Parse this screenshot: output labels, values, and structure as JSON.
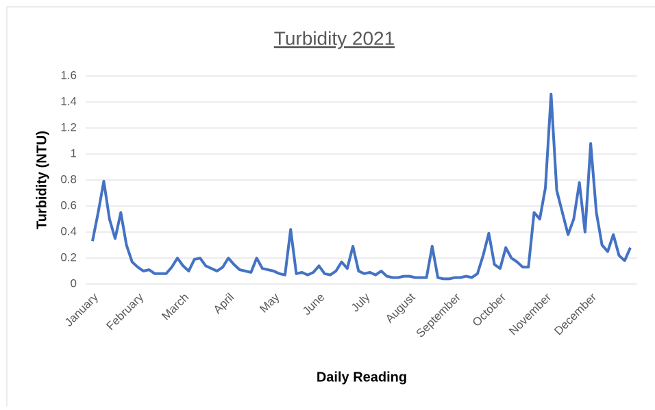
{
  "chart_data": {
    "type": "line",
    "title": "Turbidity 2021",
    "x_label": "Daily Reading",
    "y_label": "Turbidity (NTU)",
    "categories": [
      "January",
      null,
      null,
      null,
      null,
      null,
      null,
      null,
      "February",
      null,
      null,
      null,
      null,
      null,
      null,
      null,
      "March",
      null,
      null,
      null,
      null,
      null,
      null,
      null,
      "April",
      null,
      null,
      null,
      null,
      null,
      null,
      null,
      "May",
      null,
      null,
      null,
      null,
      null,
      null,
      null,
      "June",
      null,
      null,
      null,
      null,
      null,
      null,
      null,
      "July",
      null,
      null,
      null,
      null,
      null,
      null,
      null,
      "August",
      null,
      null,
      null,
      null,
      null,
      null,
      null,
      "September",
      null,
      null,
      null,
      null,
      null,
      null,
      null,
      "October",
      null,
      null,
      null,
      null,
      null,
      null,
      null,
      "November",
      null,
      null,
      null,
      null,
      null,
      null,
      null,
      "December",
      null,
      null,
      null,
      null,
      null,
      null,
      null
    ],
    "series": [
      {
        "name": "Turbidity",
        "color": "#4472c4",
        "values": [
          0.33,
          0.55,
          0.79,
          0.5,
          0.35,
          0.55,
          0.3,
          0.17,
          0.13,
          0.1,
          0.11,
          0.08,
          0.08,
          0.08,
          0.13,
          0.2,
          0.14,
          0.1,
          0.19,
          0.2,
          0.14,
          0.12,
          0.1,
          0.13,
          0.2,
          0.15,
          0.11,
          0.1,
          0.09,
          0.2,
          0.12,
          0.11,
          0.1,
          0.08,
          0.07,
          0.42,
          0.08,
          0.09,
          0.07,
          0.09,
          0.14,
          0.08,
          0.07,
          0.1,
          0.17,
          0.12,
          0.29,
          0.1,
          0.08,
          0.09,
          0.07,
          0.1,
          0.06,
          0.05,
          0.05,
          0.06,
          0.06,
          0.05,
          0.05,
          0.05,
          0.29,
          0.05,
          0.04,
          0.04,
          0.05,
          0.05,
          0.06,
          0.05,
          0.08,
          0.22,
          0.39,
          0.15,
          0.12,
          0.28,
          0.2,
          0.17,
          0.13,
          0.13,
          0.55,
          0.5,
          0.74,
          1.46,
          0.72,
          0.55,
          0.38,
          0.5,
          0.78,
          0.4,
          1.08,
          0.55,
          0.3,
          0.25,
          0.38,
          0.22,
          0.18,
          0.28
        ]
      }
    ],
    "ylim": [
      0,
      1.6
    ],
    "yticks": [
      0,
      {
        "value": 0.2,
        "label": "0.2"
      },
      {
        "value": 0.4,
        "label": "0.4"
      },
      {
        "value": 0.6,
        "label": "0.6"
      },
      {
        "value": 0.8,
        "label": "0.8"
      },
      1,
      {
        "value": 1.2,
        "label": "1.2"
      },
      {
        "value": 1.4,
        "label": "1.4"
      },
      {
        "value": 1.6,
        "label": "1.6"
      }
    ],
    "grid": true
  }
}
